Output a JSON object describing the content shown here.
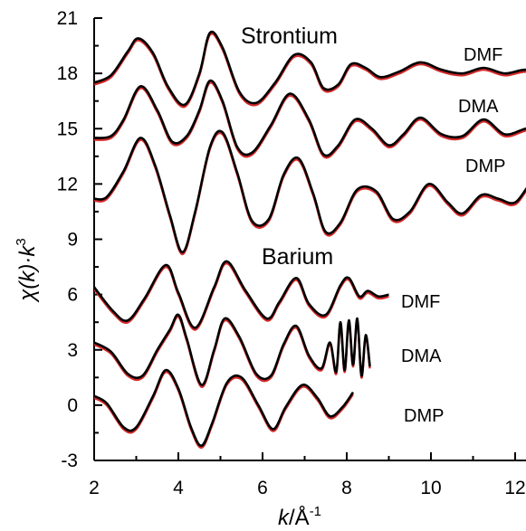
{
  "chart_data": {
    "type": "line",
    "xlabel_italic": "k",
    "xlabel_rest": "/Å",
    "xlabel_sup": "-1",
    "ylabel_chi": "χ",
    "ylabel_k": "(k)·k",
    "ylabel_sup": "3",
    "xlim": [
      2,
      13
    ],
    "ylim": [
      -3,
      21
    ],
    "xticks": [
      2,
      4,
      6,
      8,
      10,
      12
    ],
    "yticks": [
      -3,
      0,
      3,
      6,
      9,
      12,
      15,
      18,
      21
    ],
    "groups": [
      {
        "title": "Strontium",
        "series_labels": [
          "DMF",
          "DMA",
          "DMP"
        ]
      },
      {
        "title": "Barium",
        "series_labels": [
          "DMF",
          "DMA",
          "DMP"
        ]
      }
    ],
    "series_colors": {
      "fit": "#d42a2a",
      "experiment": "#000000"
    },
    "series": [
      {
        "group": "Strontium",
        "label": "DMF",
        "color": "#000000",
        "x": [
          2.0,
          2.4,
          2.8,
          3.05,
          3.4,
          3.75,
          4.15,
          4.5,
          4.75,
          5.05,
          5.45,
          5.85,
          6.3,
          6.75,
          7.15,
          7.45,
          7.8,
          8.1,
          8.45,
          8.8,
          9.25,
          9.75,
          10.25,
          10.75,
          11.25,
          11.75,
          12.25,
          12.75,
          13.0
        ],
        "y": [
          17.5,
          17.9,
          19.2,
          19.9,
          19.1,
          17.3,
          16.3,
          18.0,
          20.2,
          19.4,
          17.0,
          16.4,
          17.5,
          19.0,
          18.6,
          17.2,
          17.4,
          18.5,
          18.3,
          17.8,
          18.1,
          18.6,
          18.2,
          18.0,
          18.3,
          18.0,
          18.2,
          18.0,
          18.1
        ]
      },
      {
        "group": "Strontium",
        "label": "DMA",
        "color": "#000000",
        "x": [
          2.0,
          2.4,
          2.7,
          3.1,
          3.5,
          3.85,
          4.2,
          4.5,
          4.75,
          5.05,
          5.4,
          5.75,
          6.2,
          6.65,
          7.1,
          7.45,
          7.8,
          8.2,
          8.6,
          9.0,
          9.35,
          9.75,
          10.25,
          10.75,
          11.25,
          11.75,
          12.25,
          12.75,
          13.0
        ],
        "y": [
          14.5,
          14.6,
          15.5,
          17.3,
          16.0,
          14.3,
          14.6,
          16.0,
          17.6,
          16.5,
          14.0,
          13.7,
          15.2,
          16.9,
          15.5,
          13.6,
          14.1,
          15.5,
          15.0,
          14.1,
          14.7,
          15.6,
          14.7,
          14.6,
          15.5,
          14.7,
          15.0,
          15.2,
          15.0
        ]
      },
      {
        "group": "Strontium",
        "label": "DMP",
        "color": "#000000",
        "x": [
          2.0,
          2.3,
          2.7,
          3.1,
          3.45,
          3.8,
          4.1,
          4.4,
          4.75,
          5.05,
          5.4,
          5.75,
          6.15,
          6.5,
          6.85,
          7.2,
          7.5,
          7.85,
          8.25,
          8.7,
          9.1,
          9.5,
          9.95,
          10.4,
          10.75,
          11.2,
          11.6,
          12.0,
          12.4,
          12.7,
          13.0
        ],
        "y": [
          11.2,
          11.3,
          12.7,
          14.5,
          13.0,
          10.3,
          8.3,
          10.5,
          14.0,
          14.8,
          12.6,
          10.0,
          10.1,
          12.5,
          13.4,
          11.5,
          9.4,
          9.9,
          11.7,
          11.6,
          10.1,
          10.5,
          12.0,
          11.0,
          10.4,
          11.4,
          11.2,
          11.0,
          12.1,
          12.0,
          12.4
        ]
      },
      {
        "group": "Barium",
        "label": "DMF",
        "color": "#000000",
        "x": [
          2.0,
          2.45,
          2.8,
          3.2,
          3.7,
          4.0,
          4.4,
          4.85,
          5.15,
          5.6,
          6.1,
          6.4,
          6.8,
          7.1,
          7.5,
          7.85,
          8.05,
          8.3,
          8.5,
          8.75,
          9.0
        ],
        "y": [
          6.4,
          5.1,
          4.6,
          5.8,
          7.6,
          6.1,
          4.2,
          6.4,
          7.8,
          6.2,
          4.7,
          5.6,
          6.9,
          5.5,
          4.9,
          6.5,
          6.9,
          5.9,
          6.2,
          5.9,
          6.0
        ]
      },
      {
        "group": "Barium",
        "label": "DMA",
        "color": "#000000",
        "x": [
          2.0,
          2.4,
          2.8,
          3.15,
          3.5,
          3.8,
          4.0,
          4.2,
          4.55,
          4.85,
          5.1,
          5.45,
          5.85,
          6.2,
          6.5,
          6.8,
          7.1,
          7.4,
          7.6,
          7.75,
          7.85,
          7.95,
          8.05,
          8.15,
          8.25,
          8.35,
          8.45,
          8.55
        ],
        "y": [
          3.4,
          2.9,
          1.7,
          1.6,
          3.0,
          4.1,
          4.9,
          3.6,
          1.1,
          3.0,
          4.7,
          3.7,
          1.7,
          1.6,
          3.3,
          4.3,
          2.7,
          2.0,
          3.4,
          1.8,
          4.5,
          1.9,
          4.6,
          2.2,
          4.7,
          1.6,
          3.8,
          2.1
        ]
      },
      {
        "group": "Barium",
        "label": "DMP",
        "color": "#000000",
        "x": [
          2.0,
          2.3,
          2.7,
          3.0,
          3.4,
          3.7,
          4.0,
          4.3,
          4.55,
          4.8,
          5.15,
          5.5,
          5.9,
          6.25,
          6.55,
          6.95,
          7.3,
          7.6,
          7.9,
          8.15
        ],
        "y": [
          0.5,
          0.1,
          -1.2,
          -1.2,
          0.5,
          1.9,
          0.9,
          -1.2,
          -2.2,
          -1.0,
          1.2,
          1.5,
          0.0,
          -1.3,
          -0.1,
          1.1,
          0.4,
          -0.6,
          -0.1,
          0.7
        ]
      }
    ]
  }
}
